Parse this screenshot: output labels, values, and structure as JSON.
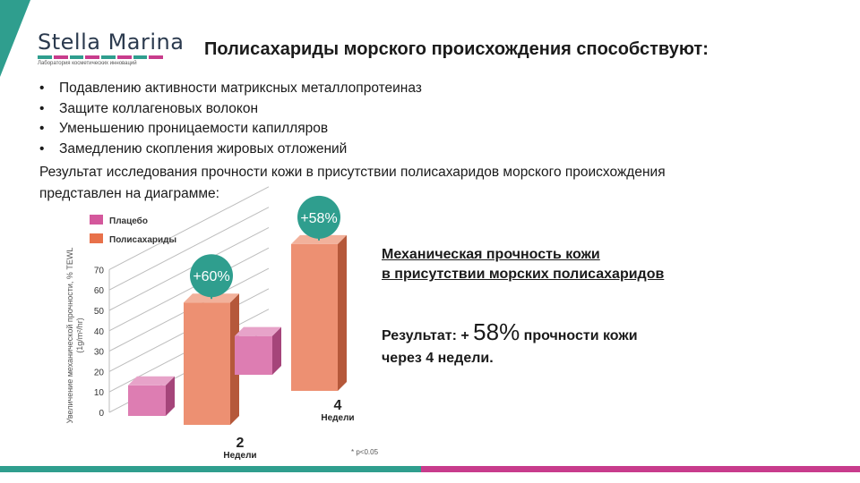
{
  "logo": {
    "name": "Stella Marina",
    "subtitle": "Лаборатория косметических инноваций",
    "stripe_colors": [
      "#2f9e8e",
      "#c83c8c",
      "#2f9e8e",
      "#c83c8c",
      "#2f9e8e",
      "#c83c8c",
      "#2f9e8e",
      "#c83c8c"
    ]
  },
  "title": "Полисахариды морского происхождения способствуют:",
  "bullets": [
    "Подавлению активности матриксных металлопротеиназ",
    "Защите коллагеновых волокон",
    "Уменьшению проницаемости капилляров",
    "Замедлению скопления жировых отложений"
  ],
  "bullet_symbol": "•",
  "paragraph": [
    "Результат исследования прочности кожи в присутствии полисахаридов морского происхождения",
    "представлен на диаграмме:"
  ],
  "chart_data": {
    "type": "bar",
    "style": "3d",
    "categories": [
      "2",
      "4"
    ],
    "category_unit": "Недели",
    "series": [
      {
        "name": "Плацебо",
        "values": [
          15,
          19
        ],
        "color": "#d4589c"
      },
      {
        "name": "Полисахариды",
        "values": [
          60,
          72
        ],
        "color": "#e8714a"
      }
    ],
    "badges": [
      "+60%",
      "+58%"
    ],
    "badge_color": "#2f9e8e",
    "ylabel": "Увеличение механической прочности, % TEWL (1g/m²/hr)",
    "yticks": [
      0,
      10,
      20,
      30,
      40,
      50,
      60,
      70
    ],
    "ylim": [
      0,
      75
    ],
    "grid": true,
    "legend_position": "top-left",
    "footnote": "* p<0.05"
  },
  "right": {
    "subtitle": [
      "Механическая прочность кожи",
      "в присутствии морских полисахаридов"
    ],
    "result_prefix": "Результат: +",
    "result_value": "58%",
    "result_suffix": "прочности кожи",
    "result_line2": "через 4 недели."
  },
  "colors": {
    "teal": "#2f9e8e",
    "magenta": "#c83c8c",
    "placebo": "#d4589c",
    "polysaccharides": "#e8714a"
  }
}
